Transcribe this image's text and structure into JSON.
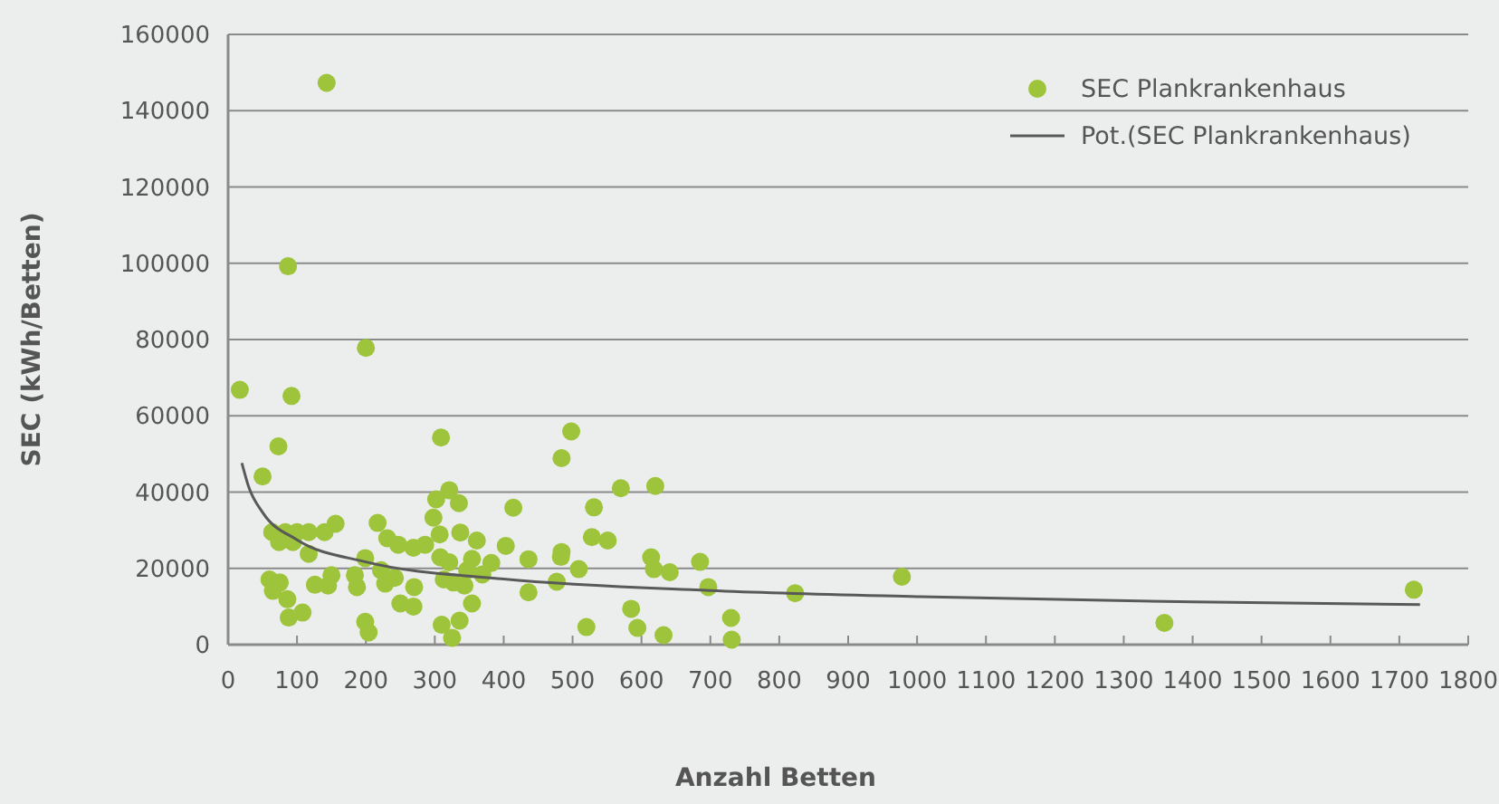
{
  "chart_data": {
    "type": "scatter",
    "xlabel": "Anzahl Betten",
    "ylabel": "SEC (kWh/Betten)",
    "xlim": [
      0,
      1800
    ],
    "ylim": [
      0,
      160000
    ],
    "xticks": [
      0,
      100,
      200,
      300,
      400,
      500,
      600,
      700,
      800,
      900,
      1000,
      1100,
      1200,
      1300,
      1400,
      1500,
      1600,
      1700,
      1800
    ],
    "yticks": [
      0,
      20000,
      40000,
      60000,
      80000,
      100000,
      120000,
      140000,
      160000
    ],
    "grid": "y",
    "legend": "top right",
    "line_style": "solid",
    "series": [
      {
        "name": "SEC Plankrankenhaus",
        "color": "#9dc43b",
        "marker": "circle",
        "x": [
          143,
          87,
          200,
          17,
          92,
          309,
          73,
          50,
          321,
          302,
          335,
          298,
          156,
          217,
          64,
          83,
          100,
          117,
          140,
          74,
          94,
          117,
          231,
          247,
          269,
          286,
          307,
          337,
          361,
          199,
          308,
          321,
          354,
          382,
          222,
          347,
          184,
          150,
          60,
          75,
          126,
          145,
          187,
          228,
          242,
          313,
          327,
          343,
          270,
          65,
          86,
          250,
          269,
          354,
          108,
          88,
          199,
          204,
          310,
          336,
          325,
          369,
          498,
          484,
          414,
          570,
          620,
          531,
          528,
          551,
          403,
          436,
          484,
          483,
          509,
          477,
          436,
          614,
          618,
          641,
          585,
          520,
          594,
          632,
          685,
          697,
          730,
          731,
          823,
          978,
          1359,
          1721
        ],
        "values": [
          147300,
          99200,
          77800,
          66800,
          65200,
          54300,
          52000,
          44100,
          40500,
          38100,
          37100,
          33300,
          31700,
          31900,
          29500,
          29500,
          29500,
          29500,
          29500,
          26900,
          26900,
          23800,
          27900,
          26200,
          25400,
          26200,
          28900,
          29400,
          27300,
          22700,
          22900,
          21600,
          22500,
          21400,
          19500,
          19500,
          18200,
          18200,
          17100,
          16300,
          15700,
          15500,
          15100,
          16000,
          17500,
          17100,
          16300,
          15500,
          15100,
          14100,
          11900,
          10800,
          10000,
          10800,
          8400,
          7100,
          6000,
          3200,
          5200,
          6300,
          1800,
          18400,
          55900,
          48900,
          35900,
          41000,
          41600,
          36000,
          28200,
          27300,
          25900,
          22400,
          24300,
          23000,
          19800,
          16500,
          13700,
          22900,
          19800,
          19000,
          9400,
          4600,
          4400,
          2500,
          21700,
          15100,
          7000,
          1300,
          13500,
          17800,
          5700,
          14400
        ]
      },
      {
        "type": "line",
        "name": "Pot.(SEC Plankrankenhaus)",
        "color": "#595959",
        "marker": "none",
        "x": [
          20,
          30,
          50,
          100,
          200,
          400,
          700,
          1000,
          1400,
          1730
        ],
        "values": [
          47600,
          41300,
          34700,
          27500,
          21700,
          17200,
          14200,
          12600,
          11200,
          10500
        ]
      }
    ]
  }
}
